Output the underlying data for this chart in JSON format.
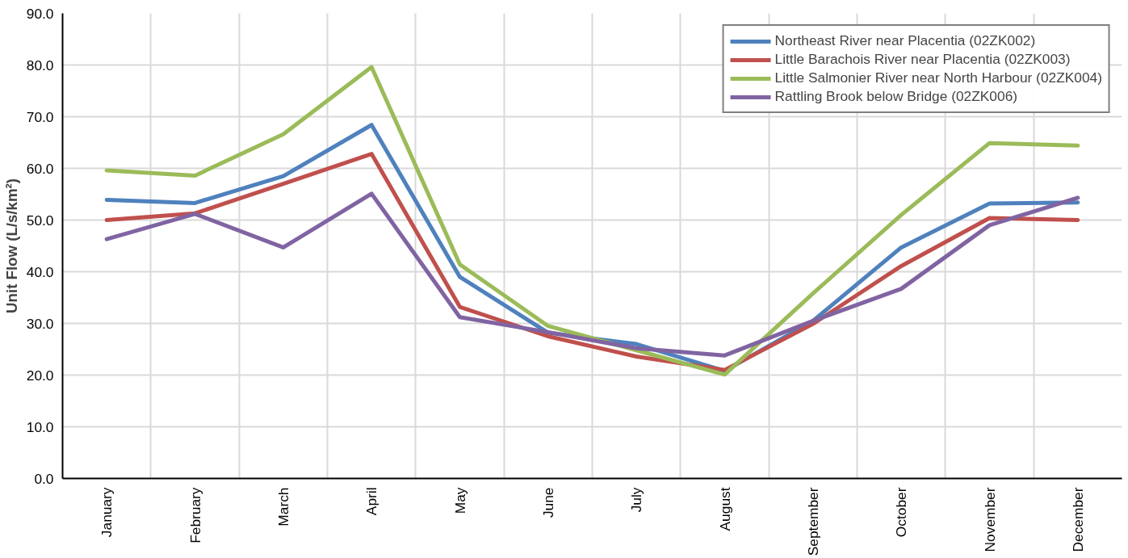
{
  "chart_data": {
    "type": "line",
    "ylabel": "Unit Flow (L/s/km²)",
    "categories": [
      "January",
      "February",
      "March",
      "April",
      "May",
      "June",
      "July",
      "August",
      "September",
      "October",
      "November",
      "December"
    ],
    "series": [
      {
        "name": "Northeast River near Placentia (02ZK002)",
        "color": "#4f81bd",
        "values": [
          53.9,
          53.3,
          58.5,
          68.4,
          39.0,
          28.2,
          26.0,
          20.8,
          30.5,
          44.7,
          53.2,
          53.4
        ]
      },
      {
        "name": "Little Barachois River near Placentia (02ZK003)",
        "color": "#c0504d",
        "values": [
          50.0,
          51.3,
          57.0,
          62.8,
          33.2,
          27.5,
          23.6,
          21.0,
          29.9,
          41.1,
          50.4,
          50.0
        ]
      },
      {
        "name": "Little Salmonier River near North Harbour (02ZK004)",
        "color": "#9bbb59",
        "values": [
          59.6,
          58.6,
          66.6,
          79.6,
          41.4,
          29.5,
          24.8,
          20.1,
          35.8,
          51.0,
          64.9,
          64.4
        ]
      },
      {
        "name": "Rattling Brook below Bridge (02ZK006)",
        "color": "#8064a2",
        "values": [
          46.3,
          51.2,
          44.7,
          55.1,
          31.2,
          28.3,
          25.2,
          23.8,
          30.5,
          36.7,
          49.0,
          54.3
        ]
      }
    ],
    "ylim": [
      0,
      90
    ],
    "yticks": [
      {
        "value": 0,
        "label": "0.0"
      },
      {
        "value": 10,
        "label": "10.0"
      },
      {
        "value": 20,
        "label": "20.0"
      },
      {
        "value": 30,
        "label": "30.0"
      },
      {
        "value": 40,
        "label": "40.0"
      },
      {
        "value": 50,
        "label": "50.0"
      },
      {
        "value": 60,
        "label": "60.0"
      },
      {
        "value": 70,
        "label": "70.0"
      },
      {
        "value": 80,
        "label": "80.0"
      },
      {
        "value": 90,
        "label": "90.0"
      }
    ],
    "grid": true,
    "legend": "top right",
    "line_style": "solid"
  }
}
